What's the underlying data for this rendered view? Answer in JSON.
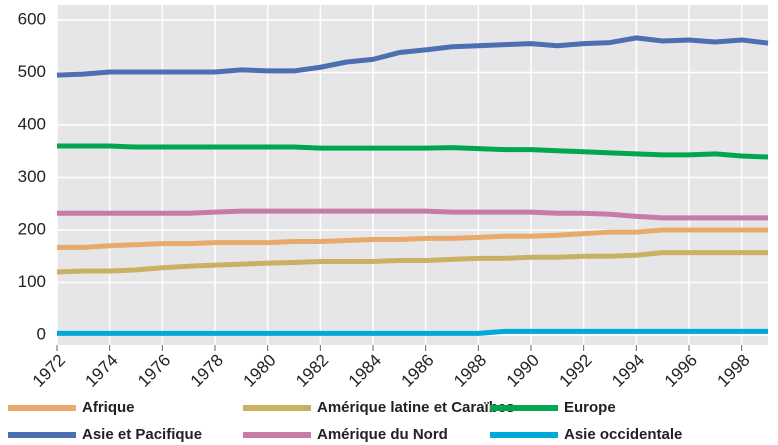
{
  "chart_data": {
    "type": "line",
    "x": [
      1972,
      1973,
      1974,
      1975,
      1976,
      1977,
      1978,
      1979,
      1980,
      1981,
      1982,
      1983,
      1984,
      1985,
      1986,
      1987,
      1988,
      1989,
      1990,
      1991,
      1992,
      1993,
      1994,
      1995,
      1996,
      1997,
      1998,
      1999
    ],
    "series": [
      {
        "name": "Afrique",
        "color": "#e9a96c",
        "values": [
          167,
          167,
          170,
          172,
          174,
          174,
          176,
          176,
          176,
          178,
          178,
          180,
          182,
          182,
          184,
          184,
          186,
          188,
          188,
          190,
          193,
          196,
          196,
          200,
          200,
          200,
          200,
          200
        ]
      },
      {
        "name": "Amérique latine et Caraïbes",
        "color": "#c8b163",
        "values": [
          120,
          122,
          122,
          124,
          128,
          131,
          133,
          135,
          137,
          138,
          140,
          140,
          140,
          142,
          142,
          144,
          146,
          146,
          148,
          148,
          150,
          150,
          152,
          157,
          157,
          157,
          157,
          157
        ]
      },
      {
        "name": "Europe",
        "color": "#00a650",
        "values": [
          360,
          360,
          360,
          358,
          358,
          358,
          358,
          358,
          358,
          358,
          356,
          356,
          356,
          356,
          356,
          357,
          355,
          353,
          353,
          351,
          349,
          347,
          345,
          343,
          343,
          345,
          341,
          339
        ]
      },
      {
        "name": "Asie et Pacifique",
        "color": "#4b6fb1",
        "values": [
          495,
          497,
          501,
          501,
          501,
          501,
          501,
          505,
          503,
          503,
          510,
          520,
          525,
          538,
          543,
          549,
          551,
          553,
          555,
          551,
          555,
          557,
          566,
          560,
          562,
          558,
          562,
          556
        ]
      },
      {
        "name": "Amérique du Nord",
        "color": "#c97ba7",
        "values": [
          232,
          232,
          232,
          232,
          232,
          232,
          234,
          236,
          236,
          236,
          236,
          236,
          236,
          236,
          236,
          234,
          234,
          234,
          234,
          232,
          232,
          230,
          226,
          223,
          223,
          223,
          223,
          223
        ]
      },
      {
        "name": "Asie occidentale",
        "color": "#00a9d9",
        "values": [
          3,
          3,
          3,
          3,
          3,
          3,
          3,
          3,
          3,
          3,
          3,
          3,
          3,
          3,
          3,
          3,
          3,
          7,
          7,
          7,
          7,
          7,
          7,
          7,
          7,
          7,
          7,
          7
        ]
      }
    ],
    "xlim": [
      1972,
      1999
    ],
    "xticks": [
      1972,
      1974,
      1976,
      1978,
      1980,
      1982,
      1984,
      1986,
      1988,
      1990,
      1992,
      1994,
      1996,
      1998
    ],
    "ylim": [
      0,
      600
    ],
    "yticks": [
      0,
      100,
      200,
      300,
      400,
      500,
      600
    ],
    "grid": true
  }
}
